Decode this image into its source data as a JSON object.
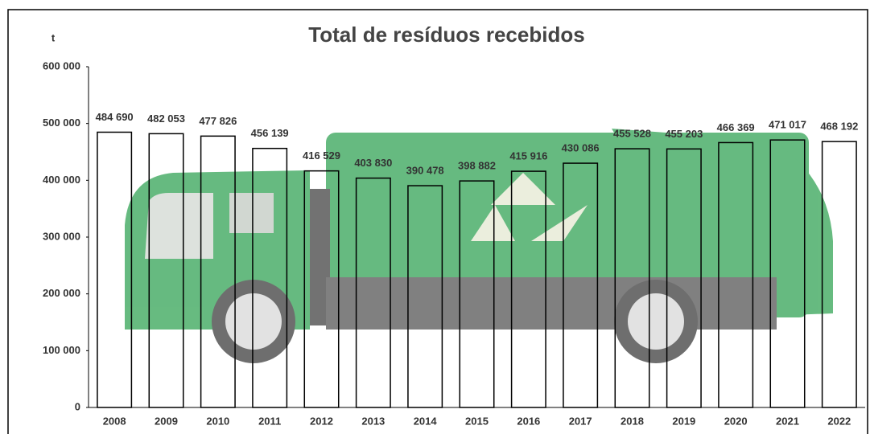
{
  "chart_data": {
    "type": "bar",
    "title": "Total de resíduos recebidos",
    "y_label": "t",
    "categories": [
      "2008",
      "2009",
      "2010",
      "2011",
      "2012",
      "2013",
      "2014",
      "2015",
      "2016",
      "2017",
      "2018",
      "2019",
      "2020",
      "2021",
      "2022"
    ],
    "values": [
      484690,
      482053,
      477826,
      456139,
      416529,
      403830,
      390478,
      398882,
      415916,
      430086,
      455528,
      455203,
      466369,
      471017,
      468192
    ],
    "value_labels": [
      "484 690",
      "482 053",
      "477 826",
      "456 139",
      "416 529",
      "403 830",
      "390 478",
      "398 882",
      "415 916",
      "430 086",
      "455 528",
      "455 203",
      "466 369",
      "471 017",
      "468 192"
    ],
    "color": "none",
    "edge_color": "#000000",
    "ylim": [
      0,
      600000
    ],
    "yticks": [
      0,
      {
        "value": 100000,
        "label": "100 000"
      },
      {
        "value": 200000,
        "label": "200 000"
      },
      {
        "value": 300000,
        "label": "300 000"
      },
      {
        "value": 400000,
        "label": "400 000"
      },
      {
        "value": 500000,
        "label": "500 000"
      },
      {
        "value": 600000,
        "label": "600 000"
      }
    ],
    "grid": false
  }
}
